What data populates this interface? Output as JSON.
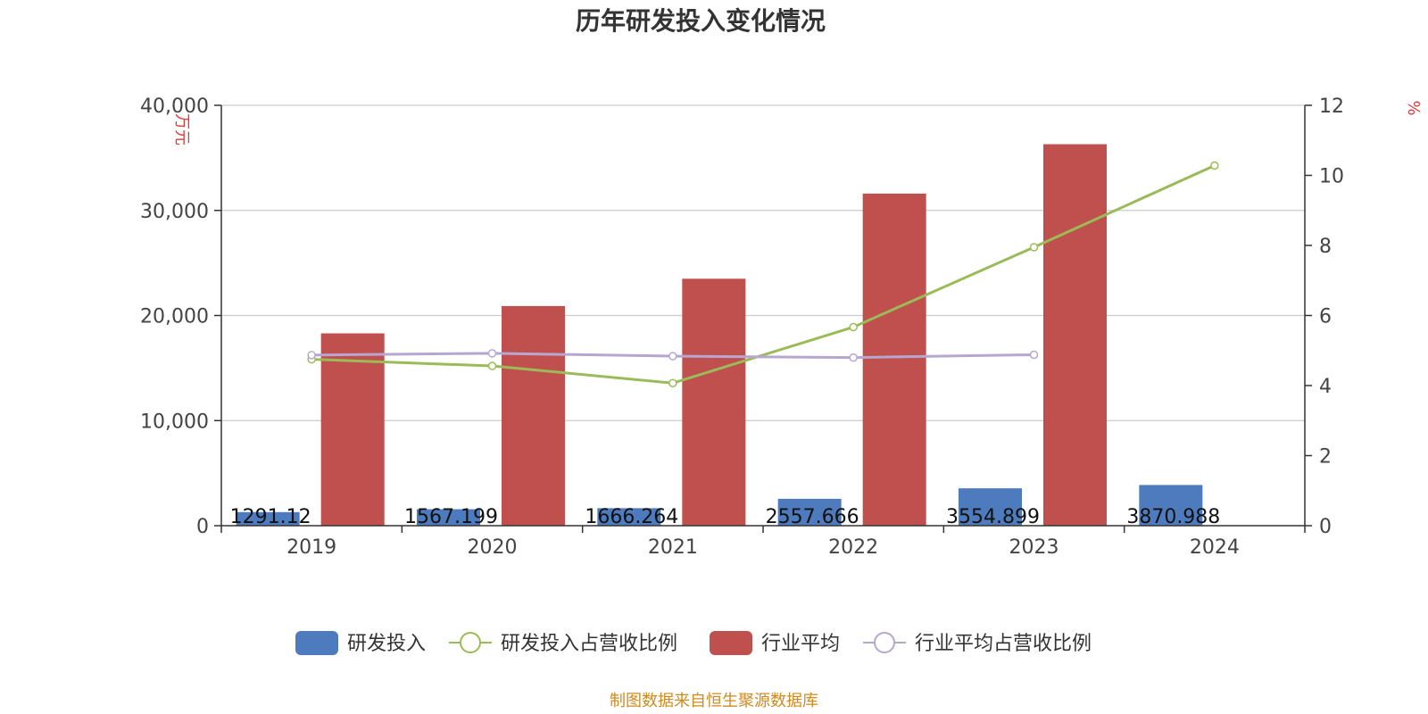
{
  "chart_data": {
    "type": "bar",
    "title": "历年研发投入变化情况",
    "categories": [
      "2019",
      "2020",
      "2021",
      "2022",
      "2023",
      "2024"
    ],
    "y_left": {
      "unit": "万元",
      "min": 0,
      "max": 40000,
      "ticks": [
        "0",
        "10,000",
        "20,000",
        "30,000",
        "40,000"
      ],
      "tick_values": [
        0,
        10000,
        20000,
        30000,
        40000
      ]
    },
    "y_right": {
      "unit": "%",
      "min": 0,
      "max": 12,
      "ticks": [
        "0",
        "2",
        "4",
        "6",
        "8",
        "10",
        "12"
      ],
      "tick_values": [
        0,
        2,
        4,
        6,
        8,
        10,
        12
      ]
    },
    "series": [
      {
        "name": "研发投入",
        "type": "bar",
        "axis": "left",
        "color": "#4e7bbd",
        "values": [
          1291.12,
          1567.199,
          1666.264,
          2557.666,
          3554.899,
          3870.988
        ],
        "labels": [
          "1291.12",
          "1567.199",
          "1666.264",
          "2557.666",
          "3554.899",
          "3870.988"
        ]
      },
      {
        "name": "研发投入占营收比例",
        "type": "line",
        "axis": "right",
        "color": "#9bbb59",
        "values": [
          4.75,
          4.56,
          4.07,
          5.67,
          7.95,
          10.28
        ]
      },
      {
        "name": "行业平均",
        "type": "bar",
        "axis": "left",
        "color": "#c0504d",
        "values": [
          18300,
          20900,
          23500,
          31600,
          36300,
          null
        ]
      },
      {
        "name": "行业平均占营收比例",
        "type": "line",
        "axis": "right",
        "color": "#b6a6d0",
        "values": [
          4.87,
          4.92,
          4.84,
          4.8,
          4.88,
          null
        ]
      }
    ],
    "grid": true,
    "legend_position": "bottom"
  },
  "source": "制图数据来自恒生聚源数据库"
}
